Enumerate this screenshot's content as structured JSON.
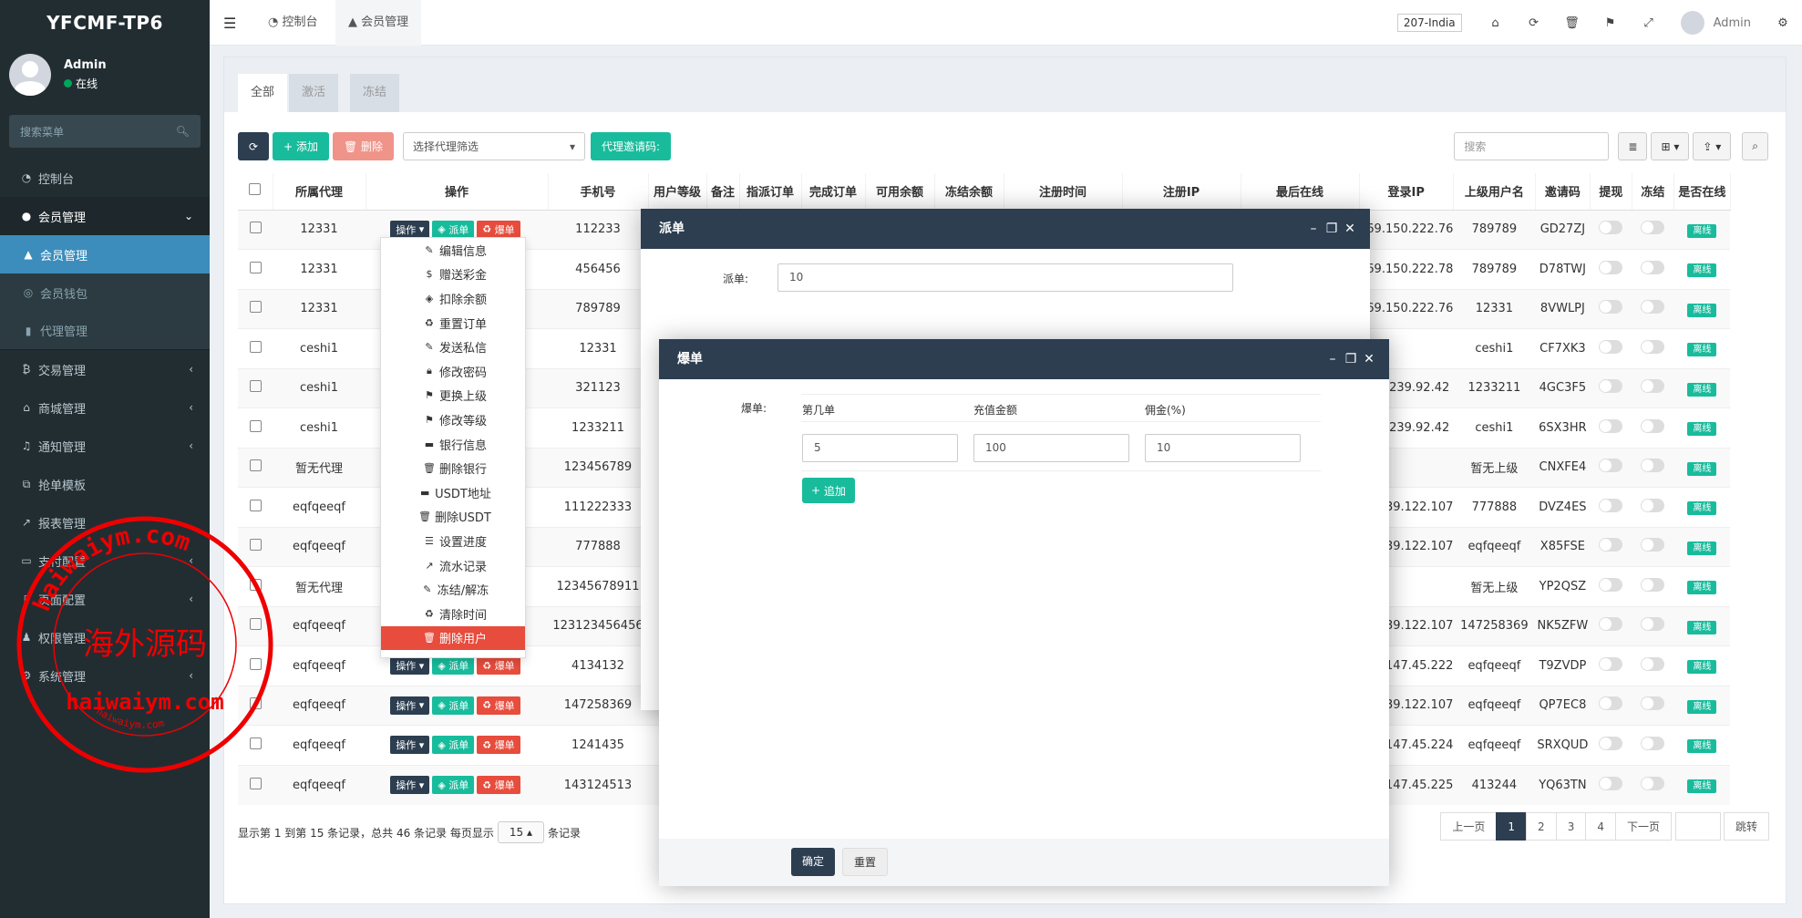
{
  "app_title": "YFCMF-TP6",
  "user": {
    "name": "Admin",
    "status": "在线"
  },
  "sidebar": {
    "search_placeholder": "搜索菜单",
    "items": [
      {
        "label": "控制台",
        "icon": "dashboard-icon"
      },
      {
        "label": "会员管理",
        "icon": "user-circle-icon"
      },
      {
        "label": "会员管理",
        "icon": "user-icon"
      },
      {
        "label": "会员钱包",
        "icon": "wallet-icon"
      },
      {
        "label": "代理管理",
        "icon": "chart-icon"
      },
      {
        "label": "交易管理",
        "icon": "bitcoin-icon"
      },
      {
        "label": "商城管理",
        "icon": "home-icon"
      },
      {
        "label": "通知管理",
        "icon": "bell-icon"
      },
      {
        "label": "抢单模板",
        "icon": "sitemap-icon"
      },
      {
        "label": "报表管理",
        "icon": "line-chart-icon"
      },
      {
        "label": "支付配置",
        "icon": "card-icon"
      },
      {
        "label": "页面配置",
        "icon": "file-icon"
      },
      {
        "label": "权限管理",
        "icon": "group-icon"
      },
      {
        "label": "系统管理",
        "icon": "cogs-icon"
      }
    ]
  },
  "header": {
    "tabs": [
      "控制台",
      "会员管理"
    ],
    "lang": "207-India",
    "admin": "Admin"
  },
  "content_tabs": [
    "全部",
    "激活",
    "冻结"
  ],
  "toolbar": {
    "add": "添加",
    "delete": "删除",
    "agent_filter": "选择代理筛选",
    "invite": "代理邀请码:",
    "search_placeholder": "搜索"
  },
  "table": {
    "headers": [
      "所属代理",
      "操作",
      "手机号",
      "用户等级",
      "备注",
      "指派订单",
      "完成订单",
      "可用余额",
      "冻结余额",
      "注册时间",
      "注册IP",
      "最后在线",
      "登录IP",
      "上级用户名",
      "邀请码",
      "提现",
      "冻结",
      "是否在线"
    ],
    "op_labels": {
      "op": "操作",
      "dispatch": "派单",
      "burst": "爆单"
    },
    "online_badge": "离线",
    "rows": [
      {
        "agent": "12331",
        "phone": "112233",
        "ip": "169.150.222.76",
        "parent": "789789",
        "code": "GD27ZJ"
      },
      {
        "agent": "12331",
        "phone": "456456",
        "ip": "169.150.222.78",
        "parent": "789789",
        "code": "D78TWJ"
      },
      {
        "agent": "12331",
        "phone": "789789",
        "ip": "169.150.222.76",
        "parent": "12331",
        "code": "8VWLPJ"
      },
      {
        "agent": "ceshi1",
        "phone": "12331",
        "ip": "",
        "parent": "ceshi1",
        "code": "CF7XK3"
      },
      {
        "agent": "ceshi1",
        "phone": "321123",
        "ip": "182.239.92.42",
        "parent": "1233211",
        "code": "4GC3F5"
      },
      {
        "agent": "ceshi1",
        "phone": "1233211",
        "ip": "182.239.92.42",
        "parent": "ceshi1",
        "code": "6SX3HR"
      },
      {
        "agent": "暂无代理",
        "phone": "123456789",
        "ip": "",
        "parent": "暂无上级",
        "code": "CNXFE4"
      },
      {
        "agent": "eqfqeeqf",
        "phone": "111222333",
        "ip": "82.239.122.107",
        "parent": "777888",
        "code": "DVZ4ES"
      },
      {
        "agent": "eqfqeeqf",
        "phone": "777888",
        "ip": "82.239.122.107",
        "parent": "eqfqeeqf",
        "code": "X85FSE"
      },
      {
        "agent": "暂无代理",
        "phone": "12345678911",
        "ip": "",
        "parent": "暂无上级",
        "code": "YP2QSZ"
      },
      {
        "agent": "eqfqeeqf",
        "phone": "123123456456",
        "ip": "82.239.122.107",
        "parent": "147258369",
        "code": "NK5ZFW"
      },
      {
        "agent": "eqfqeeqf",
        "phone": "4134132",
        "ip": "103.147.45.222",
        "parent": "eqfqeeqf",
        "code": "T9ZVDP"
      },
      {
        "agent": "eqfqeeqf",
        "phone": "147258369",
        "ip": "82.239.122.107",
        "parent": "eqfqeeqf",
        "code": "QP7EC8"
      },
      {
        "agent": "eqfqeeqf",
        "phone": "1241435",
        "ip": "103.147.45.224",
        "parent": "eqfqeeqf",
        "code": "SRXQUD"
      },
      {
        "agent": "eqfqeeqf",
        "phone": "143124513",
        "ip": "103.147.45.225",
        "parent": "413244",
        "code": "YQ63TN"
      }
    ]
  },
  "dropdown": [
    {
      "label": "编辑信息",
      "icon": "magic-icon"
    },
    {
      "label": "赠送彩金",
      "icon": "dollar-icon"
    },
    {
      "label": "扣除余额",
      "icon": "shield-icon"
    },
    {
      "label": "重置订单",
      "icon": "recycle-icon"
    },
    {
      "label": "发送私信",
      "icon": "magic-icon"
    },
    {
      "label": "修改密码",
      "icon": "lock-icon"
    },
    {
      "label": "更换上级",
      "icon": "flag-icon"
    },
    {
      "label": "修改等级",
      "icon": "flag-icon"
    },
    {
      "label": "银行信息",
      "icon": "card-icon"
    },
    {
      "label": "删除银行",
      "icon": "trash-icon"
    },
    {
      "label": "USDT地址",
      "icon": "card-icon"
    },
    {
      "label": "删除USDT",
      "icon": "trash-icon"
    },
    {
      "label": "设置进度",
      "icon": "sliders-icon"
    },
    {
      "label": "流水记录",
      "icon": "line-chart-icon"
    },
    {
      "label": "冻结/解冻",
      "icon": "magic-icon"
    },
    {
      "label": "清除时间",
      "icon": "recycle-icon"
    },
    {
      "label": "删除用户",
      "icon": "trash-icon"
    }
  ],
  "footer": {
    "info_prefix": "显示第 1 到第 15 条记录，总共 46 条记录 每页显示",
    "page_size": "15",
    "info_suffix": "条记录",
    "prev": "上一页",
    "pages": [
      "1",
      "2",
      "3",
      "4"
    ],
    "next": "下一页",
    "jump": "跳转"
  },
  "dialog_dispatch": {
    "title": "派单",
    "label": "派单:",
    "value": "10"
  },
  "dialog_burst": {
    "title": "爆单",
    "label": "爆单:",
    "col1": "第几单",
    "col2": "充值金额",
    "col3": "佣金(%)",
    "v1": "5",
    "v2": "100",
    "v3": "10",
    "add": "追加",
    "confirm": "确定",
    "reset": "重置"
  },
  "watermark": {
    "url": "haiwaiym.com",
    "name": "海外源码",
    "ring": "haiwaiym.com"
  }
}
